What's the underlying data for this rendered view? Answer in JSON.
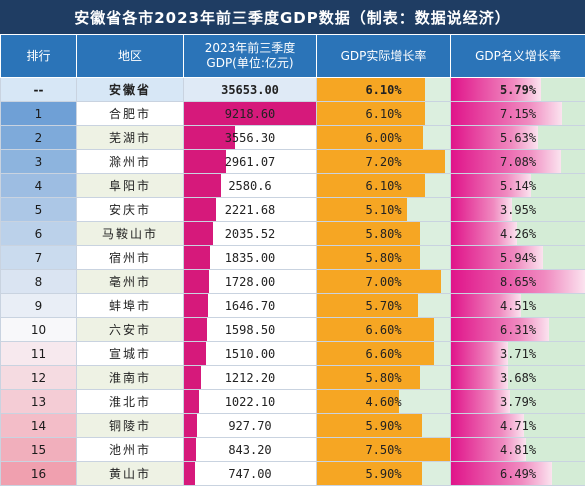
{
  "title": "安徽省各市2023年前三季度GDP数据（制表：数据说经济）",
  "headers": {
    "rank": "排行",
    "region": "地区",
    "gdp": "2023年前三季度GDP(单位:亿元)",
    "real": "GDP实际增长率",
    "nominal": "GDP名义增长率"
  },
  "colors": {
    "title_bg": "#1f3d63",
    "header_bg": "#2b74b8",
    "gdp_bar": "#d6197b",
    "real_bar": "#f6a623",
    "real_bg": "#dcefdf",
    "nominal_bar": "#e0148a",
    "nominal_bg": "#d4ecd6"
  },
  "rows": [
    {
      "rank": "--",
      "region": "安徽省",
      "gdp": "35653.00",
      "real": "6.10%",
      "nominal": "5.79%"
    },
    {
      "rank": "1",
      "region": "合肥市",
      "gdp": "9218.60",
      "real": "6.10%",
      "nominal": "7.15%"
    },
    {
      "rank": "2",
      "region": "芜湖市",
      "gdp": "3556.30",
      "real": "6.00%",
      "nominal": "5.63%"
    },
    {
      "rank": "3",
      "region": "滁州市",
      "gdp": "2961.07",
      "real": "7.20%",
      "nominal": "7.08%"
    },
    {
      "rank": "4",
      "region": "阜阳市",
      "gdp": "2580.6",
      "real": "6.10%",
      "nominal": "5.14%"
    },
    {
      "rank": "5",
      "region": "安庆市",
      "gdp": "2221.68",
      "real": "5.10%",
      "nominal": "3.95%"
    },
    {
      "rank": "6",
      "region": "马鞍山市",
      "gdp": "2035.52",
      "real": "5.80%",
      "nominal": "4.26%"
    },
    {
      "rank": "7",
      "region": "宿州市",
      "gdp": "1835.00",
      "real": "5.80%",
      "nominal": "5.94%"
    },
    {
      "rank": "8",
      "region": "亳州市",
      "gdp": "1728.00",
      "real": "7.00%",
      "nominal": "8.65%"
    },
    {
      "rank": "9",
      "region": "蚌埠市",
      "gdp": "1646.70",
      "real": "5.70%",
      "nominal": "4.51%"
    },
    {
      "rank": "10",
      "region": "六安市",
      "gdp": "1598.50",
      "real": "6.60%",
      "nominal": "6.31%"
    },
    {
      "rank": "11",
      "region": "宣城市",
      "gdp": "1510.00",
      "real": "6.60%",
      "nominal": "3.71%"
    },
    {
      "rank": "12",
      "region": "淮南市",
      "gdp": "1212.20",
      "real": "5.80%",
      "nominal": "3.68%"
    },
    {
      "rank": "13",
      "region": "淮北市",
      "gdp": "1022.10",
      "real": "4.60%",
      "nominal": "3.79%"
    },
    {
      "rank": "14",
      "region": "铜陵市",
      "gdp": "927.70",
      "real": "5.90%",
      "nominal": "4.71%"
    },
    {
      "rank": "15",
      "region": "池州市",
      "gdp": "843.20",
      "real": "7.50%",
      "nominal": "4.81%"
    },
    {
      "rank": "16",
      "region": "黄山市",
      "gdp": "747.00",
      "real": "5.90%",
      "nominal": "6.49%"
    }
  ]
}
